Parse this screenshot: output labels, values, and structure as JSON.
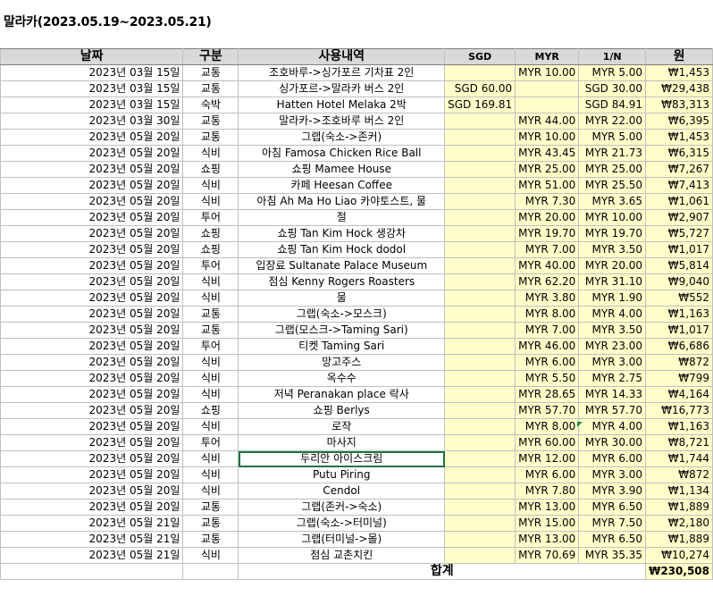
{
  "title": "말라카(2023.05.19~2023.05.21)",
  "columns": [
    "날짜",
    "구분",
    "사용내역",
    "SGD",
    "MYR",
    "1/N",
    "원"
  ],
  "rows": [
    {
      "date": "2023년 03월 15일",
      "cat": "교통",
      "desc": "조호바루->싱가포르 기차표 2인",
      "sgd": "",
      "myr": "MYR 10.00",
      "n": "MYR 5.00",
      "won": "₩1,453"
    },
    {
      "date": "2023년 03월 15일",
      "cat": "교통",
      "desc": "싱가포르->말라카 버스 2인",
      "sgd": "SGD 60.00",
      "myr": "",
      "n": "SGD 30.00",
      "won": "₩29,438"
    },
    {
      "date": "2023년 03월 15일",
      "cat": "숙박",
      "desc": "Hatten Hotel Melaka 2박",
      "sgd": "SGD 169.81",
      "myr": "",
      "n": "SGD 84.91",
      "won": "₩83,313"
    },
    {
      "date": "2023년 03월 30일",
      "cat": "교통",
      "desc": "말라카->조호바루 버스 2인",
      "sgd": "",
      "myr": "MYR 44.00",
      "n": "MYR 22.00",
      "won": "₩6,395"
    },
    {
      "date": "2023년 05월 20일",
      "cat": "교통",
      "desc": "그랩(숙소->존커)",
      "sgd": "",
      "myr": "MYR 10.00",
      "n": "MYR 5.00",
      "won": "₩1,453"
    },
    {
      "date": "2023년 05월 20일",
      "cat": "식비",
      "desc": "아침 Famosa Chicken Rice Ball",
      "sgd": "",
      "myr": "MYR 43.45",
      "n": "MYR 21.73",
      "won": "₩6,315"
    },
    {
      "date": "2023년 05월 20일",
      "cat": "쇼핑",
      "desc": "쇼핑 Mamee House",
      "sgd": "",
      "myr": "MYR 25.00",
      "n": "MYR 25.00",
      "won": "₩7,267"
    },
    {
      "date": "2023년 05월 20일",
      "cat": "식비",
      "desc": "카페 Heesan Coffee",
      "sgd": "",
      "myr": "MYR 51.00",
      "n": "MYR 25.50",
      "won": "₩7,413"
    },
    {
      "date": "2023년 05월 20일",
      "cat": "식비",
      "desc": "아침 Ah Ma Ho Liao 카야토스트, 물",
      "sgd": "",
      "myr": "MYR 7.30",
      "n": "MYR 3.65",
      "won": "₩1,061"
    },
    {
      "date": "2023년 05월 20일",
      "cat": "투어",
      "desc": "절",
      "sgd": "",
      "myr": "MYR 20.00",
      "n": "MYR 10.00",
      "won": "₩2,907"
    },
    {
      "date": "2023년 05월 20일",
      "cat": "쇼핑",
      "desc": "쇼핑 Tan Kim Hock 생강차",
      "sgd": "",
      "myr": "MYR 19.70",
      "n": "MYR 19.70",
      "won": "₩5,727"
    },
    {
      "date": "2023년 05월 20일",
      "cat": "쇼핑",
      "desc": "쇼핑 Tan Kim Hock dodol",
      "sgd": "",
      "myr": "MYR 7.00",
      "n": "MYR 3.50",
      "won": "₩1,017"
    },
    {
      "date": "2023년 05월 20일",
      "cat": "투어",
      "desc": "입장료 Sultanate Palace Museum",
      "sgd": "",
      "myr": "MYR 40.00",
      "n": "MYR 20.00",
      "won": "₩5,814"
    },
    {
      "date": "2023년 05월 20일",
      "cat": "식비",
      "desc": "점심 Kenny Rogers Roasters",
      "sgd": "",
      "myr": "MYR 62.20",
      "n": "MYR 31.10",
      "won": "₩9,040"
    },
    {
      "date": "2023년 05월 20일",
      "cat": "식비",
      "desc": "물",
      "sgd": "",
      "myr": "MYR 3.80",
      "n": "MYR 1.90",
      "won": "₩552"
    },
    {
      "date": "2023년 05월 20일",
      "cat": "교통",
      "desc": "그랩(숙소->모스크)",
      "sgd": "",
      "myr": "MYR 8.00",
      "n": "MYR 4.00",
      "won": "₩1,163"
    },
    {
      "date": "2023년 05월 20일",
      "cat": "교통",
      "desc": "그랩(모스크->Taming Sari)",
      "sgd": "",
      "myr": "MYR 7.00",
      "n": "MYR 3.50",
      "won": "₩1,017"
    },
    {
      "date": "2023년 05월 20일",
      "cat": "투어",
      "desc": "티켓 Taming Sari",
      "sgd": "",
      "myr": "MYR 46.00",
      "n": "MYR 23.00",
      "won": "₩6,686"
    },
    {
      "date": "2023년 05월 20일",
      "cat": "식비",
      "desc": "망고주스",
      "sgd": "",
      "myr": "MYR 6.00",
      "n": "MYR 3.00",
      "won": "₩872"
    },
    {
      "date": "2023년 05월 20일",
      "cat": "식비",
      "desc": "옥수수",
      "sgd": "",
      "myr": "MYR 5.50",
      "n": "MYR 2.75",
      "won": "₩799"
    },
    {
      "date": "2023년 05월 20일",
      "cat": "식비",
      "desc": "저녁 Peranakan place 락사",
      "sgd": "",
      "myr": "MYR 28.65",
      "n": "MYR 14.33",
      "won": "₩4,164"
    },
    {
      "date": "2023년 05월 20일",
      "cat": "쇼핑",
      "desc": "쇼핑 Berlys",
      "sgd": "",
      "myr": "MYR 57.70",
      "n": "MYR 57.70",
      "won": "₩16,773"
    },
    {
      "date": "2023년 05월 20일",
      "cat": "식비",
      "desc": "로작",
      "sgd": "",
      "myr": "MYR 8.00",
      "n": "MYR 4.00",
      "won": "₩1,163"
    },
    {
      "date": "2023년 05월 20일",
      "cat": "투어",
      "desc": "마사지",
      "sgd": "",
      "myr": "MYR 60.00",
      "n": "MYR 30.00",
      "won": "₩8,721"
    },
    {
      "date": "2023년 05월 20일",
      "cat": "식비",
      "desc": "두리안 아이스크림",
      "sgd": "",
      "myr": "MYR 12.00",
      "n": "MYR 6.00",
      "won": "₩1,744"
    },
    {
      "date": "2023년 05월 20일",
      "cat": "식비",
      "desc": "Putu Piring",
      "sgd": "",
      "myr": "MYR 6.00",
      "n": "MYR 3.00",
      "won": "₩872"
    },
    {
      "date": "2023년 05월 20일",
      "cat": "식비",
      "desc": "Cendol",
      "sgd": "",
      "myr": "MYR 7.80",
      "n": "MYR 3.90",
      "won": "₩1,134"
    },
    {
      "date": "2023년 05월 20일",
      "cat": "교통",
      "desc": "그랩(존커->숙소)",
      "sgd": "",
      "myr": "MYR 13.00",
      "n": "MYR 6.50",
      "won": "₩1,889"
    },
    {
      "date": "2023년 05월 21일",
      "cat": "교통",
      "desc": "그랩(숙소->터미널)",
      "sgd": "",
      "myr": "MYR 15.00",
      "n": "MYR 7.50",
      "won": "₩2,180"
    },
    {
      "date": "2023년 05월 21일",
      "cat": "교통",
      "desc": "그랩(터미널->몰)",
      "sgd": "",
      "myr": "MYR 13.00",
      "n": "MYR 6.50",
      "won": "₩1,889"
    },
    {
      "date": "2023년 05월 21일",
      "cat": "식비",
      "desc": "점심 교촌치킨",
      "sgd": "",
      "myr": "MYR 70.69",
      "n": "MYR 35.35",
      "won": "₩10,274"
    }
  ],
  "selected_row_index": 24,
  "total": {
    "label": "합계",
    "won": "₩230,508"
  },
  "colors": {
    "header_bg": "#d9d9d9",
    "highlight_bg": "#ffffc9",
    "selection": "#217346"
  }
}
